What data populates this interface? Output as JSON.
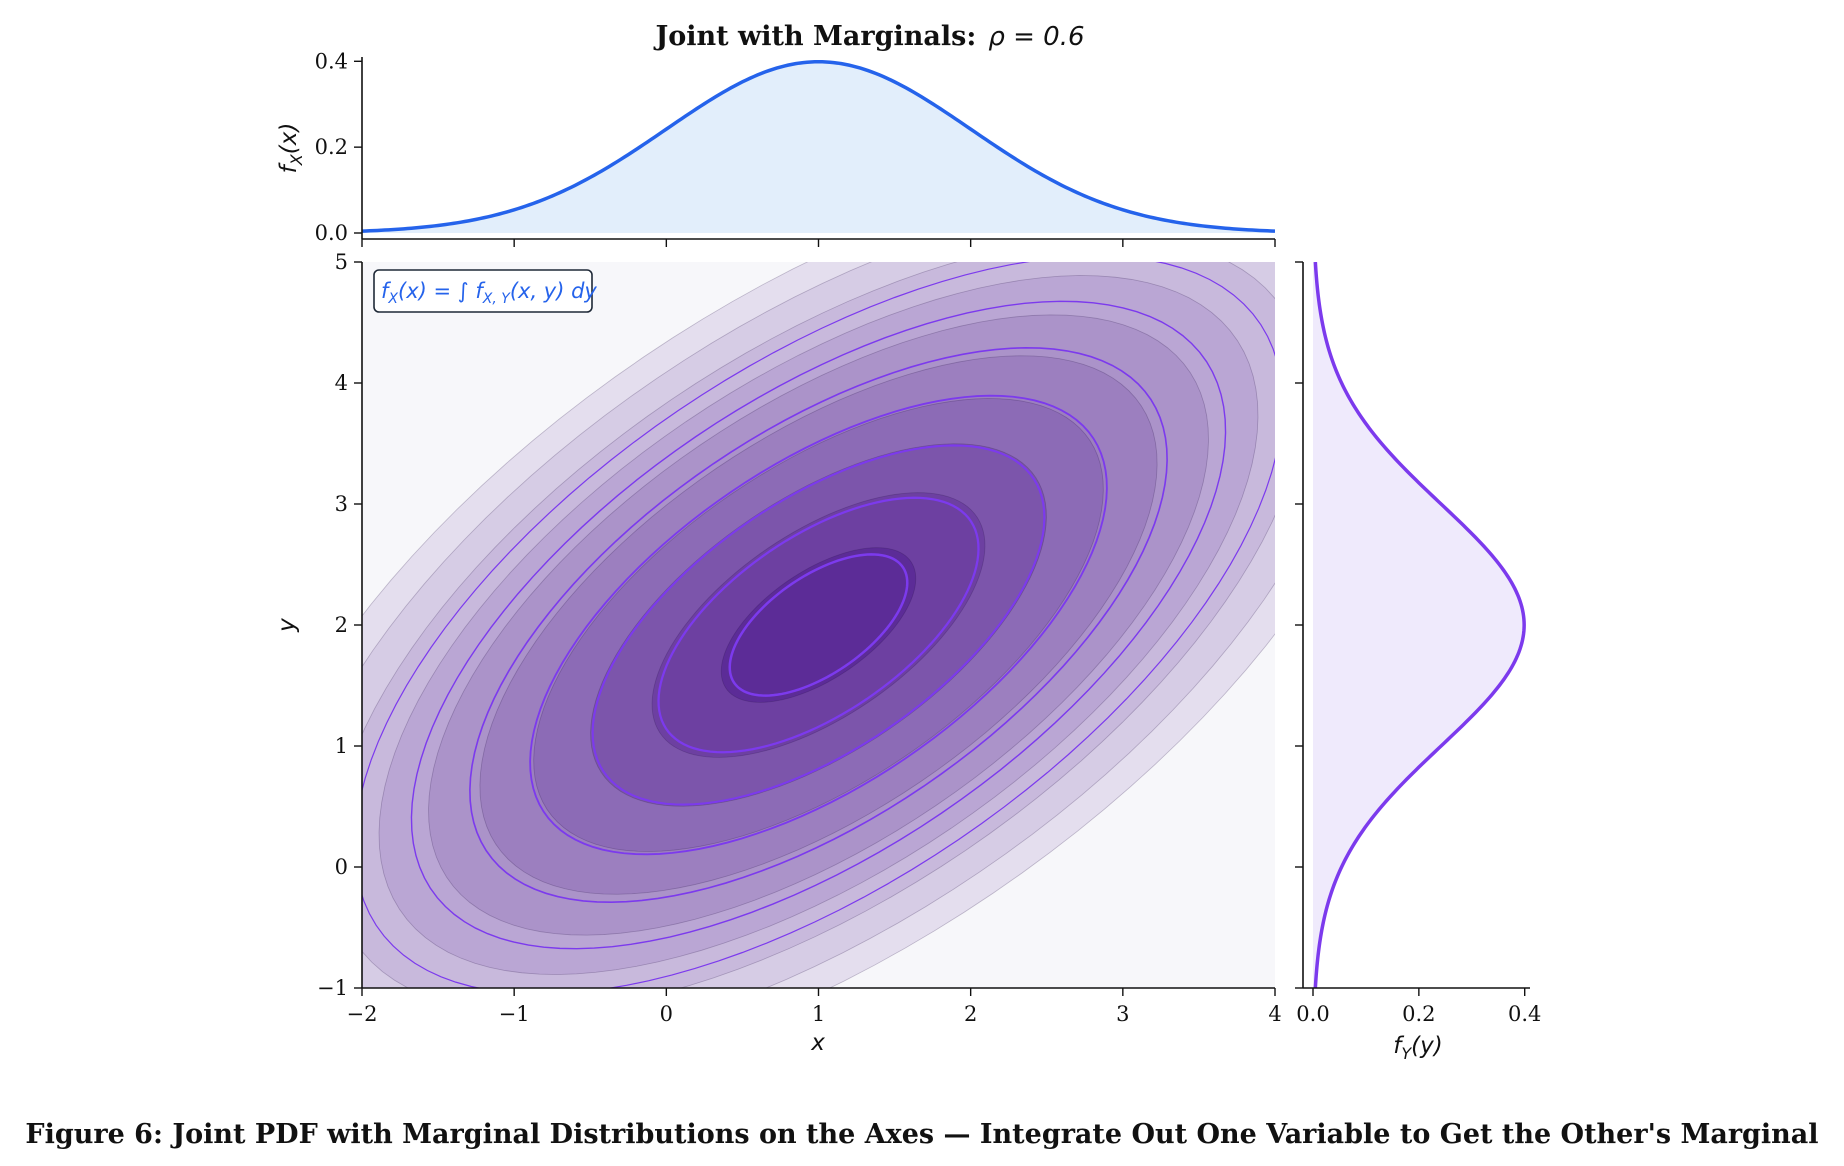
{
  "title": {
    "prefix": "Joint with Marginals:",
    "math": "ρ = 0.6"
  },
  "caption": "Figure 6: Joint PDF with Marginal Distributions on the Axes — Integrate Out One Variable to Get the Other's Marginal",
  "annotation": "f_X(x) = ∫ f_{X,Y}(x, y) dy",
  "chart_data": [
    {
      "panel": "joint",
      "type": "contour",
      "distribution": "bivariate normal",
      "mean": [
        1,
        2
      ],
      "std": [
        1,
        1
      ],
      "rho": 0.6,
      "xlabel": "x",
      "ylabel": "y",
      "xlim": [
        -2,
        4
      ],
      "ylim": [
        -1,
        5
      ],
      "xticks": [
        "−2",
        "−1",
        "0",
        "1",
        "2",
        "3",
        "4"
      ],
      "yticks": [
        "−1",
        "0",
        "1",
        "2",
        "3",
        "4",
        "5"
      ],
      "filled_levels": 10,
      "line_levels": 7,
      "colors": {
        "line": "#7c3aed",
        "fill_low": "#f7f7fa",
        "fill_high": "#5b2a96"
      }
    },
    {
      "panel": "top_marginal",
      "type": "area",
      "function": "normal pdf",
      "mean": 1,
      "std": 1,
      "ylabel": "f_X(x)",
      "xlim": [
        -2,
        4
      ],
      "ylim": [
        0,
        0.41
      ],
      "yticks": [
        "0.0",
        "0.2",
        "0.4"
      ],
      "peak": 0.399,
      "colors": {
        "line": "#2563eb",
        "fill": "#e2eefb"
      }
    },
    {
      "panel": "right_marginal",
      "type": "area",
      "function": "normal pdf",
      "mean": 2,
      "std": 1,
      "xlabel": "f_Y(y)",
      "xlim": [
        0,
        0.41
      ],
      "ylim": [
        -1,
        5
      ],
      "xticks": [
        "0.0",
        "0.2",
        "0.4"
      ],
      "peak": 0.399,
      "colors": {
        "line": "#7c3aed",
        "fill": "#efeafc"
      }
    }
  ]
}
